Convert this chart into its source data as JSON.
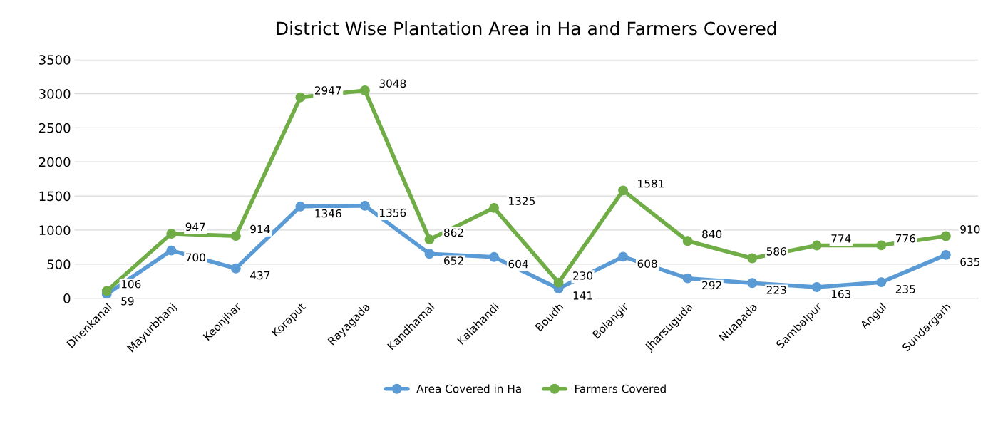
{
  "chart_data": {
    "type": "line",
    "title": "District Wise Plantation Area in Ha and Farmers Covered",
    "categories": [
      "Dhenkanal",
      "Mayurbhanj",
      "Keonjhar",
      "Koraput",
      "Rayagada",
      "Kandhamal",
      "Kalahandi",
      "Boudh",
      "Bolangir",
      "Jharsuguda",
      "Nuapada",
      "Sambalpur",
      "Angul",
      "Sundargarh"
    ],
    "series": [
      {
        "name": "Area Covered in Ha",
        "color": "#5b9bd5",
        "values": [
          59,
          700,
          437,
          1346,
          1356,
          652,
          604,
          141,
          608,
          292,
          223,
          163,
          235,
          635
        ]
      },
      {
        "name": "Farmers Covered",
        "color": "#70ad47",
        "values": [
          106,
          947,
          914,
          2947,
          3048,
          862,
          1325,
          230,
          1581,
          840,
          586,
          774,
          776,
          910
        ]
      }
    ],
    "ylim": [
      0,
      3500
    ],
    "yticks": [
      0,
      500,
      1000,
      1500,
      2000,
      2500,
      3000,
      3500
    ],
    "grid": "y",
    "legend": "bottom",
    "marker": "circle",
    "line_style": "solid",
    "data_labels": true
  }
}
